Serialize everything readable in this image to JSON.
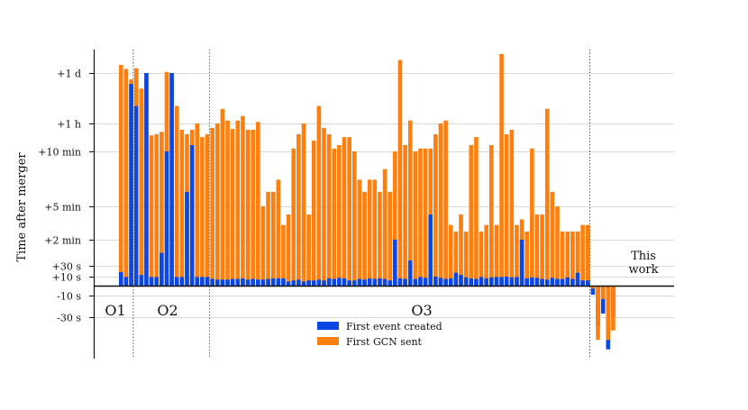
{
  "chart_data": {
    "type": "bar",
    "ylabel": "Time after merger",
    "y_scale": "nonlinear (piecewise, signed)",
    "yticks": [
      "+1 d",
      "+1 h",
      "+10 min",
      "+5 min",
      "+2 min",
      "+30 s",
      "+10 s",
      "-10 s",
      "-30 s"
    ],
    "grid": "horizontal",
    "legend_position": "bottom-center",
    "runs": [
      "O1",
      "O2",
      "O3"
    ],
    "work_label": [
      "This",
      "work"
    ],
    "series": [
      {
        "name": "First event created",
        "color": "#0a48e6"
      },
      {
        "name": "First GCN sent",
        "color": "#ff7f0e"
      }
    ],
    "bars": [
      {
        "group": "O1",
        "event": "+16 s",
        "gcn": "+2 d"
      },
      {
        "group": "O1",
        "event": "+9 s",
        "gcn": "+1.4 d"
      },
      {
        "group": "O1",
        "event": "+12 h",
        "gcn": "+16 h"
      },
      {
        "group": "O2",
        "event": "+3 h",
        "gcn": "+1.5 d"
      },
      {
        "group": "O2",
        "event": "+12 s",
        "gcn": "+9 h"
      },
      {
        "group": "O2",
        "event": "+1 d",
        "gcn": "+1 d"
      },
      {
        "group": "O2",
        "event": "+9 s",
        "gcn": "+28 min"
      },
      {
        "group": "O2",
        "event": "+9 s",
        "gcn": "+30 min"
      },
      {
        "group": "O2",
        "event": "+1 min",
        "gcn": "+35 min"
      },
      {
        "group": "O2",
        "event": "+10 min",
        "gcn": "+1.1 d"
      },
      {
        "group": "O2",
        "event": "+1 d",
        "gcn": "+1 d"
      },
      {
        "group": "O2",
        "event": "+9 s",
        "gcn": "+3 h"
      },
      {
        "group": "O2",
        "event": "+9 s",
        "gcn": "+40 min"
      },
      {
        "group": "O2",
        "event": "+6 min",
        "gcn": "+30 min"
      },
      {
        "group": "O2",
        "event": "+15 min",
        "gcn": "+40 min"
      },
      {
        "group": "O2",
        "event": "+9 s",
        "gcn": "+1 h"
      },
      {
        "group": "O2",
        "event": "+9 s",
        "gcn": "+25 min"
      },
      {
        "group": "O2",
        "event": "+9 s",
        "gcn": "+30 min"
      },
      {
        "group": "O3",
        "event": "+5 s",
        "gcn": "+45 min"
      },
      {
        "group": "O3",
        "event": "+4 s",
        "gcn": "+1 h"
      },
      {
        "group": "O3",
        "event": "+4 s",
        "gcn": "+2.5 h"
      },
      {
        "group": "O3",
        "event": "+4 s",
        "gcn": "+1.2 h"
      },
      {
        "group": "O3",
        "event": "+5 s",
        "gcn": "+42 min"
      },
      {
        "group": "O3",
        "event": "+5 s",
        "gcn": "+1.2 h"
      },
      {
        "group": "O3",
        "event": "+6 s",
        "gcn": "+1.6 h"
      },
      {
        "group": "O3",
        "event": "+4 s",
        "gcn": "+40 min"
      },
      {
        "group": "O3",
        "event": "+5 s",
        "gcn": "+40 min"
      },
      {
        "group": "O3",
        "event": "+4 s",
        "gcn": "+1.1 h"
      },
      {
        "group": "O3",
        "event": "+4 s",
        "gcn": "+5 min"
      },
      {
        "group": "O3",
        "event": "+5 s",
        "gcn": "+6 min"
      },
      {
        "group": "O3",
        "event": "+6 s",
        "gcn": "+6 min"
      },
      {
        "group": "O3",
        "event": "+6 s",
        "gcn": "+7 min"
      },
      {
        "group": "O3",
        "event": "+6 s",
        "gcn": "+3 min"
      },
      {
        "group": "O3",
        "event": "+2 s",
        "gcn": "+4 min"
      },
      {
        "group": "O3",
        "event": "+3 s",
        "gcn": "+12 min"
      },
      {
        "group": "O3",
        "event": "+4 s",
        "gcn": "+30 min"
      },
      {
        "group": "O3",
        "event": "+2 s",
        "gcn": "+1 h"
      },
      {
        "group": "O3",
        "event": "+3 s",
        "gcn": "+4 min"
      },
      {
        "group": "O3",
        "event": "+3 s",
        "gcn": "+20 min"
      },
      {
        "group": "O3",
        "event": "+4 s",
        "gcn": "+3 h"
      },
      {
        "group": "O3",
        "event": "+3 s",
        "gcn": "+45 min"
      },
      {
        "group": "O3",
        "event": "+6 s",
        "gcn": "+30 min"
      },
      {
        "group": "O3",
        "event": "+5 s",
        "gcn": "+12 min"
      },
      {
        "group": "O3",
        "event": "+7 s",
        "gcn": "+15 min"
      },
      {
        "group": "O3",
        "event": "+6 s",
        "gcn": "+25 min"
      },
      {
        "group": "O3",
        "event": "+3 s",
        "gcn": "+25 min"
      },
      {
        "group": "O3",
        "event": "+3 s",
        "gcn": "+10 min"
      },
      {
        "group": "O3",
        "event": "+5 s",
        "gcn": "+7 min"
      },
      {
        "group": "O3",
        "event": "+4 s",
        "gcn": "+6 min"
      },
      {
        "group": "O3",
        "event": "+6 s",
        "gcn": "+7 min"
      },
      {
        "group": "O3",
        "event": "+5 s",
        "gcn": "+7 min"
      },
      {
        "group": "O3",
        "event": "+6 s",
        "gcn": "+6 min"
      },
      {
        "group": "O3",
        "event": "+5 s",
        "gcn": "+8 min"
      },
      {
        "group": "O3",
        "event": "+3 s",
        "gcn": "+6 min"
      },
      {
        "group": "O3",
        "event": "+2 min",
        "gcn": "+10 min"
      },
      {
        "group": "O3",
        "event": "+6 s",
        "gcn": "+3 d"
      },
      {
        "group": "O3",
        "event": "+5 s",
        "gcn": "+15 min"
      },
      {
        "group": "O3",
        "event": "+40 s",
        "gcn": "+1.2 h"
      },
      {
        "group": "O3",
        "event": "+5 s",
        "gcn": "+10 min"
      },
      {
        "group": "O3",
        "event": "+9 s",
        "gcn": "+12 min"
      },
      {
        "group": "O3",
        "event": "+7 s",
        "gcn": "+12 min"
      },
      {
        "group": "O3",
        "event": "+4 min",
        "gcn": "+12 min"
      },
      {
        "group": "O3",
        "event": "+10 s",
        "gcn": "+30 min"
      },
      {
        "group": "O3",
        "event": "+7 s",
        "gcn": "+1 h"
      },
      {
        "group": "O3",
        "event": "+5 s",
        "gcn": "+1.2 h"
      },
      {
        "group": "O3",
        "event": "+6 s",
        "gcn": "+3 min"
      },
      {
        "group": "O3",
        "event": "+15 s",
        "gcn": "+2.5 min"
      },
      {
        "group": "O3",
        "event": "+12 s",
        "gcn": "+4 min"
      },
      {
        "group": "O3",
        "event": "+8 s",
        "gcn": "+2.5 min"
      },
      {
        "group": "O3",
        "event": "+6 s",
        "gcn": "+15 min"
      },
      {
        "group": "O3",
        "event": "+5 s",
        "gcn": "+25 min"
      },
      {
        "group": "O3",
        "event": "+9 s",
        "gcn": "+2.5 min"
      },
      {
        "group": "O3",
        "event": "+6 s",
        "gcn": "+3 min"
      },
      {
        "group": "O3",
        "event": "+8 s",
        "gcn": "+15 min"
      },
      {
        "group": "O3",
        "event": "+9 s",
        "gcn": "+3 min"
      },
      {
        "group": "O3",
        "event": "+9 s",
        "gcn": "+5 d"
      },
      {
        "group": "O3",
        "event": "+10 s",
        "gcn": "+30 min"
      },
      {
        "group": "O3",
        "event": "+8 s",
        "gcn": "+40 min"
      },
      {
        "group": "O3",
        "event": "+9 s",
        "gcn": "+3 min"
      },
      {
        "group": "O3",
        "event": "+2 min",
        "gcn": "+3.5 min"
      },
      {
        "group": "O3",
        "event": "+6 s",
        "gcn": "+2.5 min"
      },
      {
        "group": "O3",
        "event": "+8 s",
        "gcn": "+12 min"
      },
      {
        "group": "O3",
        "event": "+7 s",
        "gcn": "+4 min"
      },
      {
        "group": "O3",
        "event": "+5 s",
        "gcn": "+4 min"
      },
      {
        "group": "O3",
        "event": "+4 s",
        "gcn": "+2.5 h"
      },
      {
        "group": "O3",
        "event": "+7 s",
        "gcn": "+6 min"
      },
      {
        "group": "O3",
        "event": "+5 s",
        "gcn": "+5 min"
      },
      {
        "group": "O3",
        "event": "+5 s",
        "gcn": "+2.5 min"
      },
      {
        "group": "O3",
        "event": "+8 s",
        "gcn": "+2.5 min"
      },
      {
        "group": "O3",
        "event": "+5 s",
        "gcn": "+2.5 min"
      },
      {
        "group": "O3",
        "event": "+15 s",
        "gcn": "+2.5 min"
      },
      {
        "group": "O3",
        "event": "+3 s",
        "gcn": "+3 min"
      },
      {
        "group": "O3",
        "event": "+3 s",
        "gcn": "+3 min"
      },
      {
        "group": "This work",
        "event": "-8 s",
        "gcn": "-1 s"
      },
      {
        "group": "This work",
        "event": "-40 s",
        "gcn": "-60 s"
      },
      {
        "group": "This work",
        "event": "-25 s",
        "gcn": "-12 s"
      },
      {
        "group": "This work",
        "event": "-80 s",
        "gcn": "-60 s"
      },
      {
        "group": "This work",
        "event": "-30 s",
        "gcn": "-45 s"
      }
    ]
  }
}
